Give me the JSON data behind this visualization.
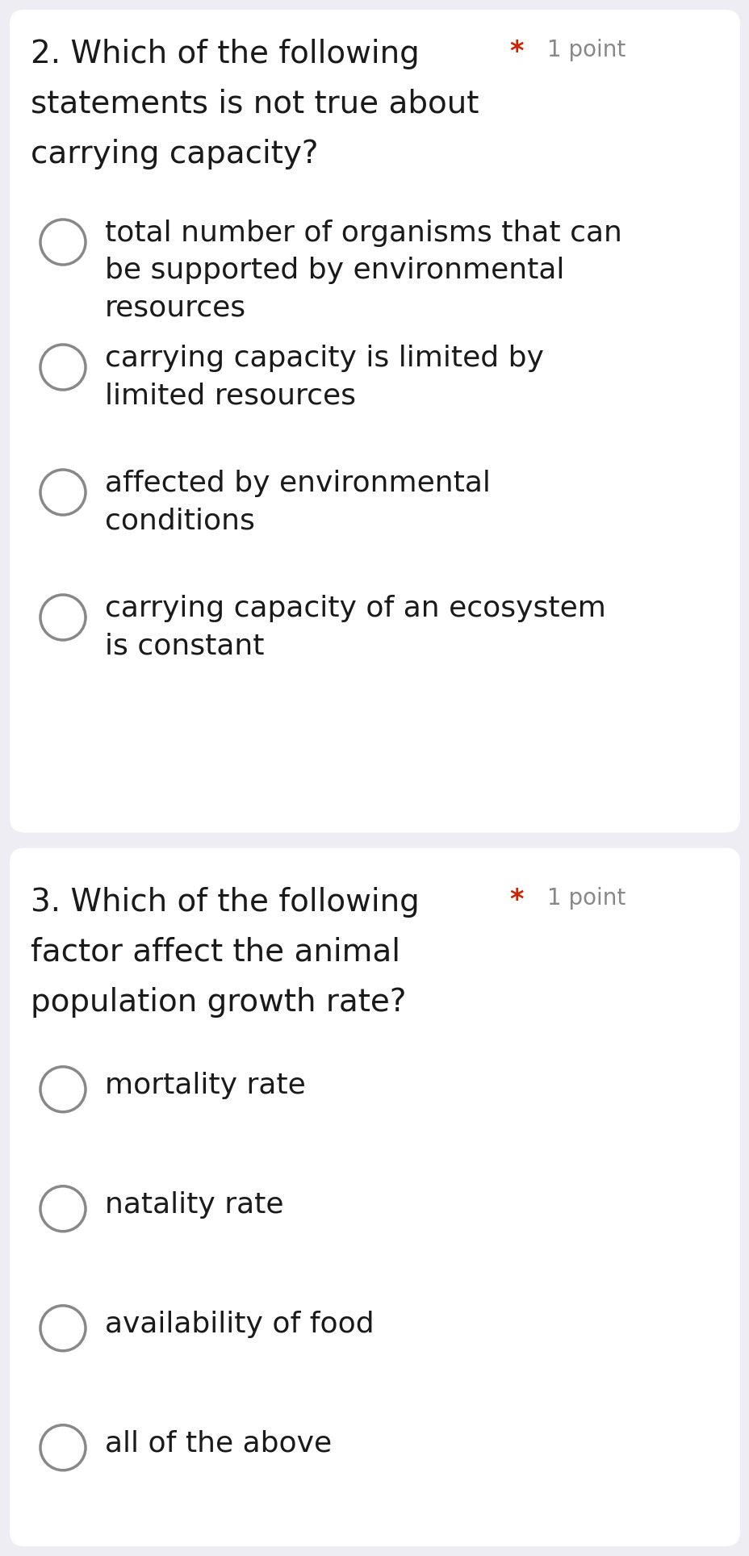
{
  "bg_color": "#eeedf4",
  "card_color": "#ffffff",
  "q1": {
    "number": "2.",
    "question_line1": "Which of the following",
    "question_line2": "statements is not true about",
    "question_line3": "carrying capacity?",
    "point_star": "*",
    "point_text": "1 point",
    "options": [
      "total number of organisms that can\nbe supported by environmental\nresources",
      "carrying capacity is limited by\nlimited resources",
      "affected by environmental\nconditions",
      "carrying capacity of an ecosystem\nis constant"
    ]
  },
  "q2": {
    "number": "3.",
    "question_line1": "Which of the following",
    "question_line2": "factor affect the animal",
    "question_line3": "population growth rate?",
    "point_star": "*",
    "point_text": "1 point",
    "options": [
      "mortality rate",
      "natality rate",
      "availability of food",
      "all of the above"
    ]
  },
  "question_fontsize": 28,
  "option_fontsize": 26,
  "point_fontsize": 20,
  "star_color": "#cc2200",
  "point_color": "#888888",
  "text_color": "#1a1a1a",
  "circle_color": "#888888",
  "circle_linewidth": 2.5
}
